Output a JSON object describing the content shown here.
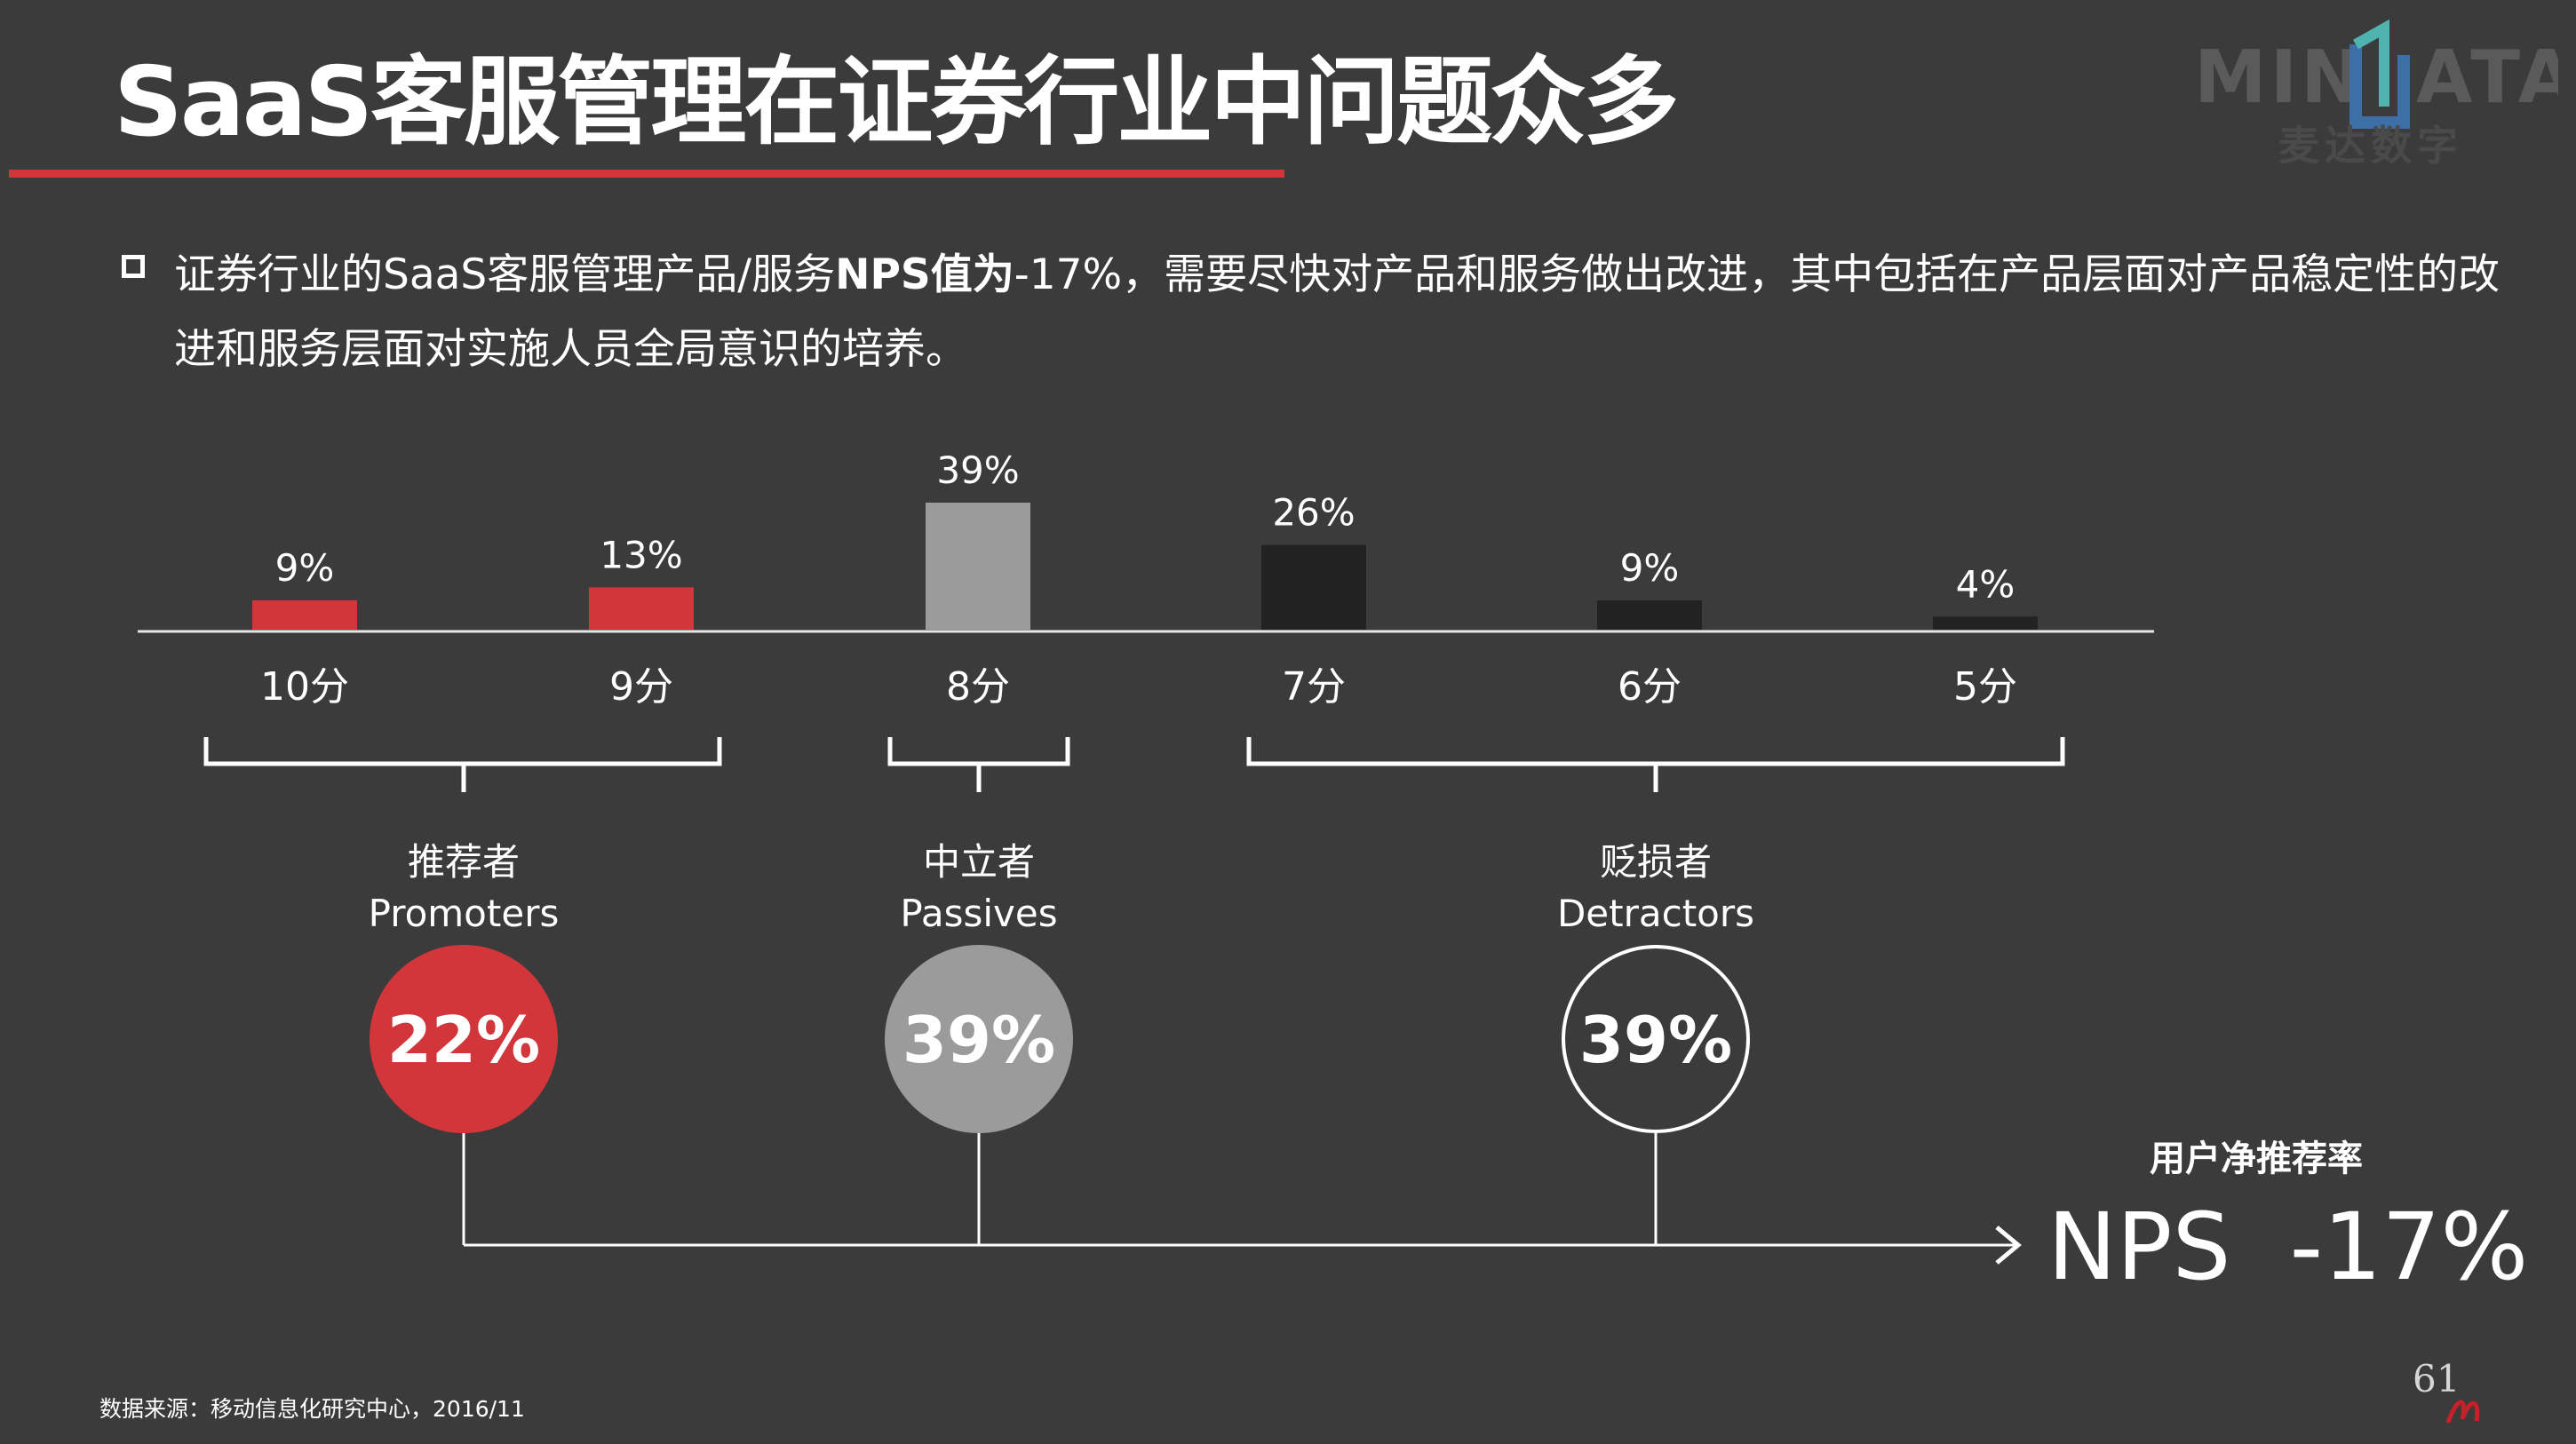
{
  "slide": {
    "title": "SaaS客服管理在证券行业中问题众多"
  },
  "logo": {
    "left": "MIN",
    "right": "ATA",
    "subtitle": "麦达数字"
  },
  "summary": {
    "part1": "证券行业的SaaS客服管理产品/服务",
    "highlight": "NPS值为",
    "part2": "-17%，需要尽快对产品和服务做出改进，其中包括在产品层面对产品稳定性的改进和服务层面对实施人员全局意识的培养。"
  },
  "chart_data": {
    "type": "bar",
    "title": "",
    "xlabel": "",
    "ylabel": "",
    "ylim": [
      0,
      39
    ],
    "categories": [
      "10分",
      "9分",
      "8分",
      "7分",
      "6分",
      "5分"
    ],
    "values": [
      9,
      13,
      39,
      26,
      9,
      4
    ],
    "value_labels": [
      "9%",
      "13%",
      "39%",
      "26%",
      "9%",
      "4%"
    ],
    "bar_colors": [
      "#d3363a",
      "#d3363a",
      "#9b9b9b",
      "#222222",
      "#222222",
      "#222222"
    ],
    "groups": [
      {
        "name_cn": "推荐者",
        "name_en": "Promoters",
        "share_label": "22%",
        "categories": [
          "10分",
          "9分"
        ],
        "style": "filled",
        "color": "#d3363a"
      },
      {
        "name_cn": "中立者",
        "name_en": "Passives",
        "share_label": "39%",
        "categories": [
          "8分"
        ],
        "style": "filled",
        "color": "#9b9b9b"
      },
      {
        "name_cn": "贬损者",
        "name_en": "Detractors",
        "share_label": "39%",
        "categories": [
          "7分",
          "6分",
          "5分"
        ],
        "style": "outline",
        "color": "#ffffff"
      }
    ],
    "grid": false
  },
  "nps": {
    "caption": "用户净推荐率",
    "label": "NPS  -17%",
    "value": -17
  },
  "footer": {
    "source": "数据来源：移动信息化研究中心，2016/11",
    "page": "61"
  },
  "colors": {
    "background": "#3b3b3b",
    "accent_red": "#d3363a",
    "neutral_gray": "#9b9b9b",
    "detractor_dark": "#222222"
  }
}
